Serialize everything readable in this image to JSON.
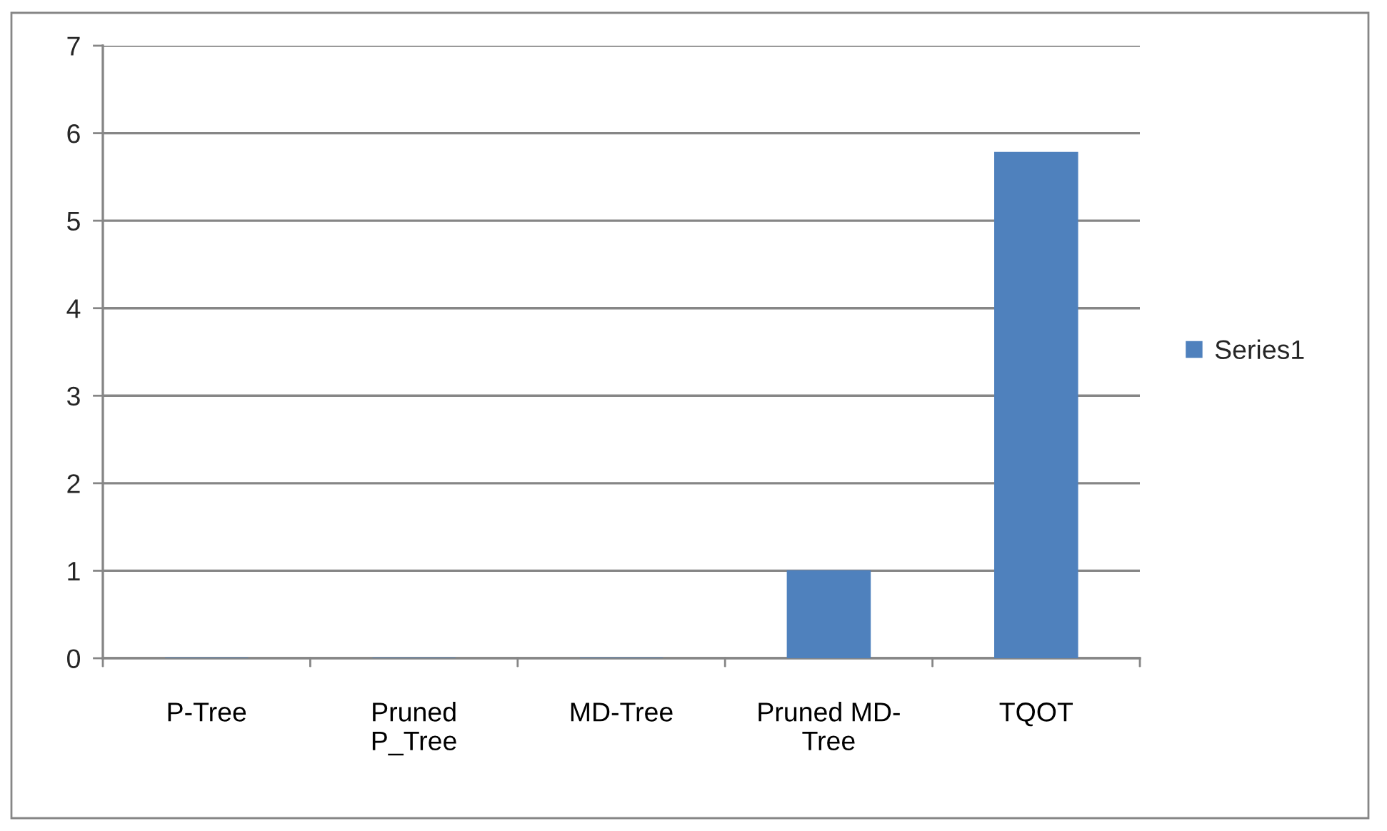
{
  "chart_data": {
    "type": "bar",
    "categories": [
      "P-Tree",
      "Pruned P_Tree",
      "MD-Tree",
      "Pruned MD-Tree",
      "TQOT"
    ],
    "series": [
      {
        "name": "Series1",
        "color": "#4f81bd",
        "values": [
          0,
          0,
          0,
          1,
          5.78
        ]
      }
    ],
    "ylim": [
      0,
      7
    ],
    "yticks": [
      0,
      1,
      2,
      3,
      4,
      5,
      6,
      7
    ],
    "grid": "y",
    "legend": "right"
  }
}
